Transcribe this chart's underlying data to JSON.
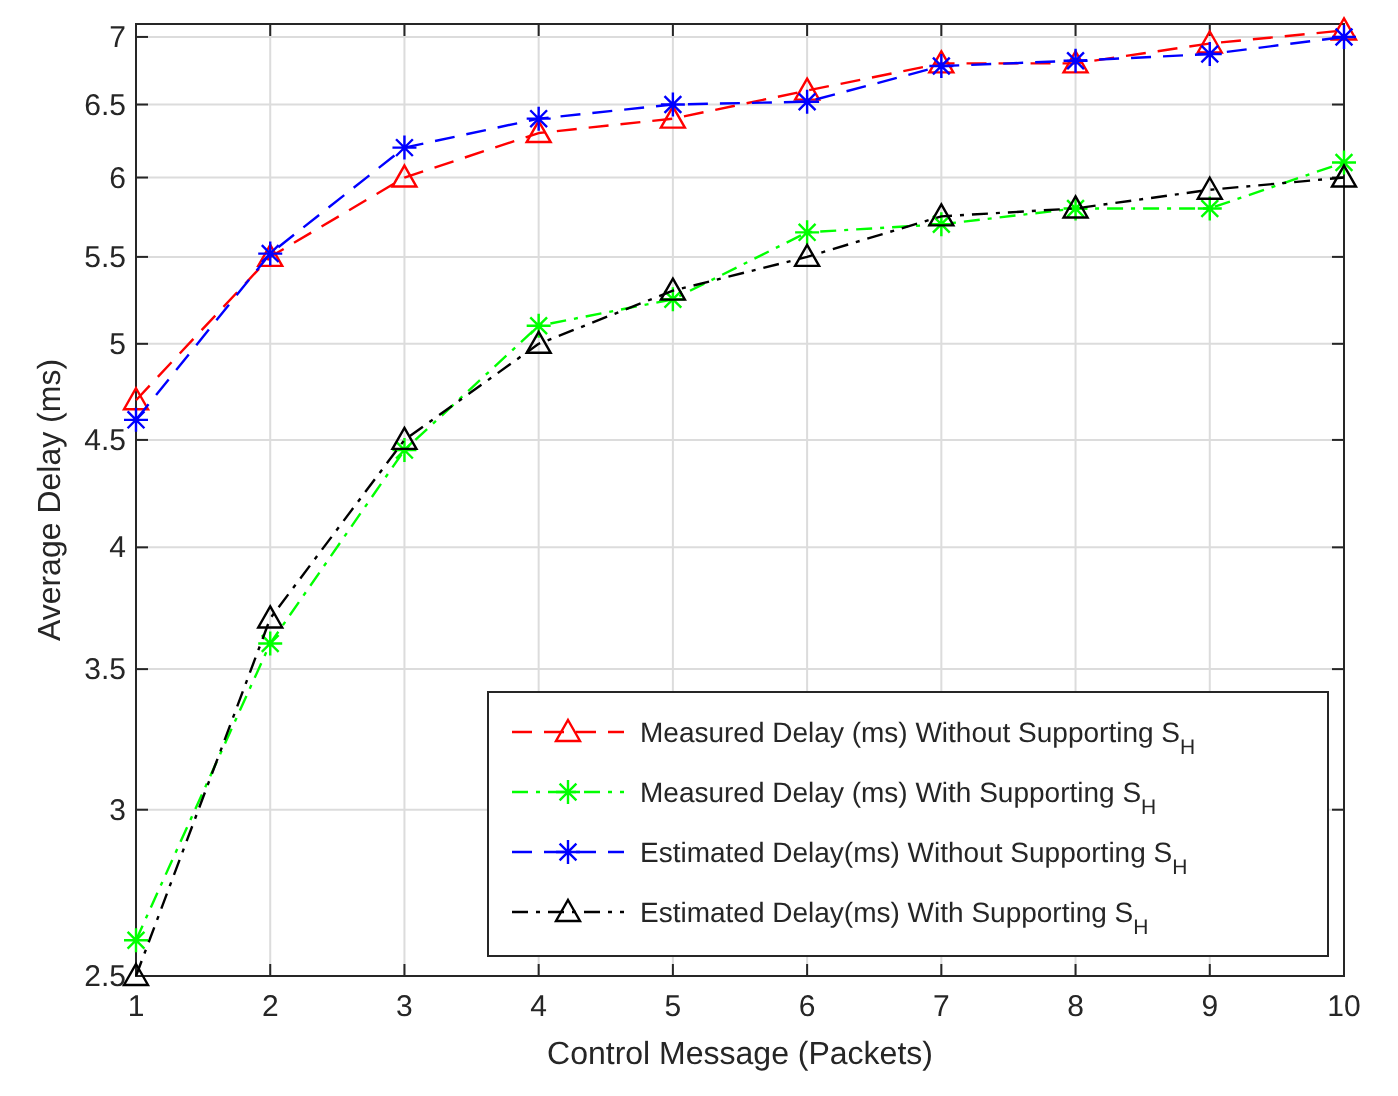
{
  "chart_data": {
    "type": "line",
    "xlabel": "Control Message (Packets)",
    "ylabel": "Average Delay (ms)",
    "x": [
      1,
      2,
      3,
      4,
      5,
      6,
      7,
      8,
      9,
      10
    ],
    "xlim": [
      1,
      10
    ],
    "xticks": [
      1,
      2,
      3,
      4,
      5,
      6,
      7,
      8,
      9,
      10
    ],
    "ylim": [
      2.5,
      7.1
    ],
    "yticks": [
      2.5,
      3,
      3.5,
      4,
      4.5,
      5,
      5.5,
      6,
      6.5,
      7
    ],
    "log": "y",
    "grid": true,
    "legend": "bottom right",
    "series": [
      {
        "name": "Measured Delay (ms) Without Supporting S$_{H}$",
        "color": "#ff0000",
        "marker": "triangle",
        "line_style": "dashed",
        "values": [
          4.7,
          5.5,
          6.0,
          6.3,
          6.4,
          6.6,
          6.8,
          6.8,
          6.95,
          7.05
        ]
      },
      {
        "name": "Measured Delay (ms) With Supporting S$_{H}$",
        "color": "#00ff00",
        "marker": "cross",
        "line_style": "dashdot",
        "values": [
          2.6,
          3.6,
          4.45,
          5.1,
          5.25,
          5.65,
          5.7,
          5.8,
          5.8,
          6.1
        ]
      },
      {
        "name": "Estimated Delay(ms) Without Supporting S$_{H}$",
        "color": "#0000ff",
        "marker": "cross",
        "line_style": "dashed",
        "values": [
          4.6,
          5.52,
          6.2,
          6.4,
          6.5,
          6.52,
          6.78,
          6.82,
          6.87,
          7.0
        ]
      },
      {
        "name": "Estimated Delay(ms) With Supporting S$_{H}$",
        "color": "#000000",
        "marker": "triangle",
        "line_style": "dashdot",
        "values": [
          2.5,
          3.7,
          4.5,
          5.0,
          5.3,
          5.5,
          5.75,
          5.8,
          5.92,
          6.0
        ]
      }
    ]
  }
}
